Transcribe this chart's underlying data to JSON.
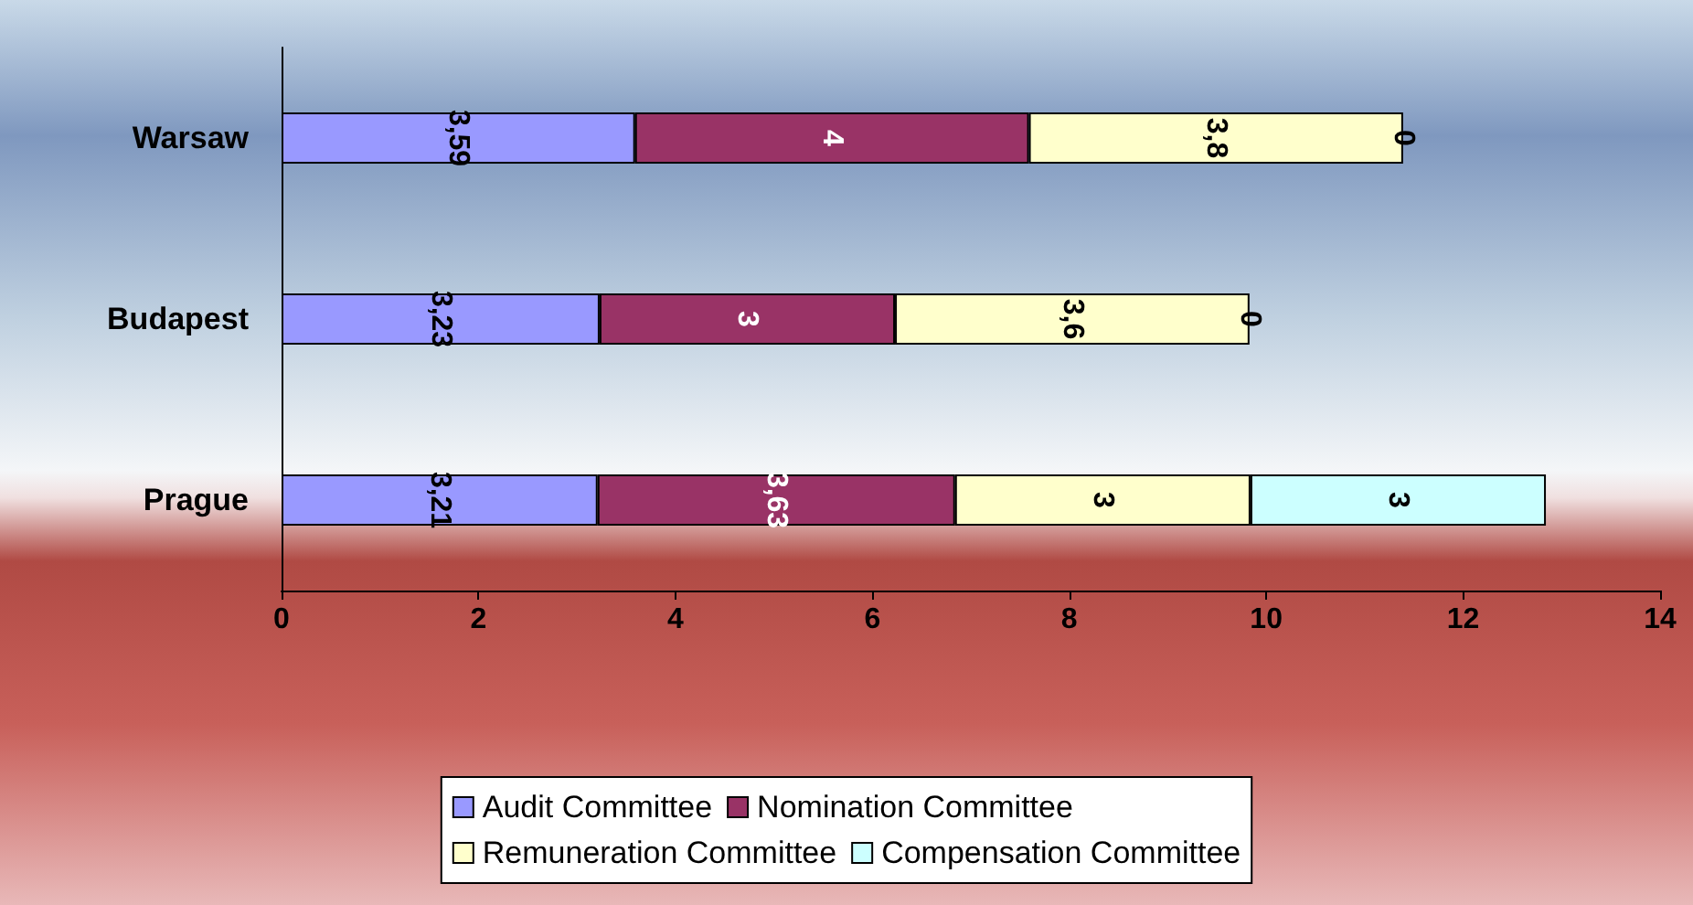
{
  "chart_data": {
    "type": "bar",
    "orientation": "horizontal",
    "stacked": true,
    "categories": [
      "Warsaw",
      "Budapest",
      "Prague"
    ],
    "series": [
      {
        "name": "Audit Committee",
        "color": "#9999ff",
        "values": [
          3.59,
          3.23,
          3.21
        ],
        "value_labels": [
          "3,59",
          "3,23",
          "3,21"
        ]
      },
      {
        "name": "Nomination Committee",
        "color": "#993366",
        "values": [
          4,
          3,
          3.63
        ],
        "value_labels": [
          "4",
          "3",
          "3,63"
        ]
      },
      {
        "name": "Remuneration Committee",
        "color": "#ffffcc",
        "values": [
          3.8,
          3.6,
          3
        ],
        "value_labels": [
          "3,8",
          "3,6",
          "3"
        ]
      },
      {
        "name": "Compensation Committee",
        "color": "#ccffff",
        "values": [
          0,
          0,
          3
        ],
        "value_labels": [
          "0",
          "0",
          "3"
        ]
      }
    ],
    "xlim": [
      0,
      14
    ],
    "xticks": [
      0,
      2,
      4,
      6,
      8,
      10,
      12,
      14
    ],
    "grid": false,
    "legend": "bottom"
  }
}
